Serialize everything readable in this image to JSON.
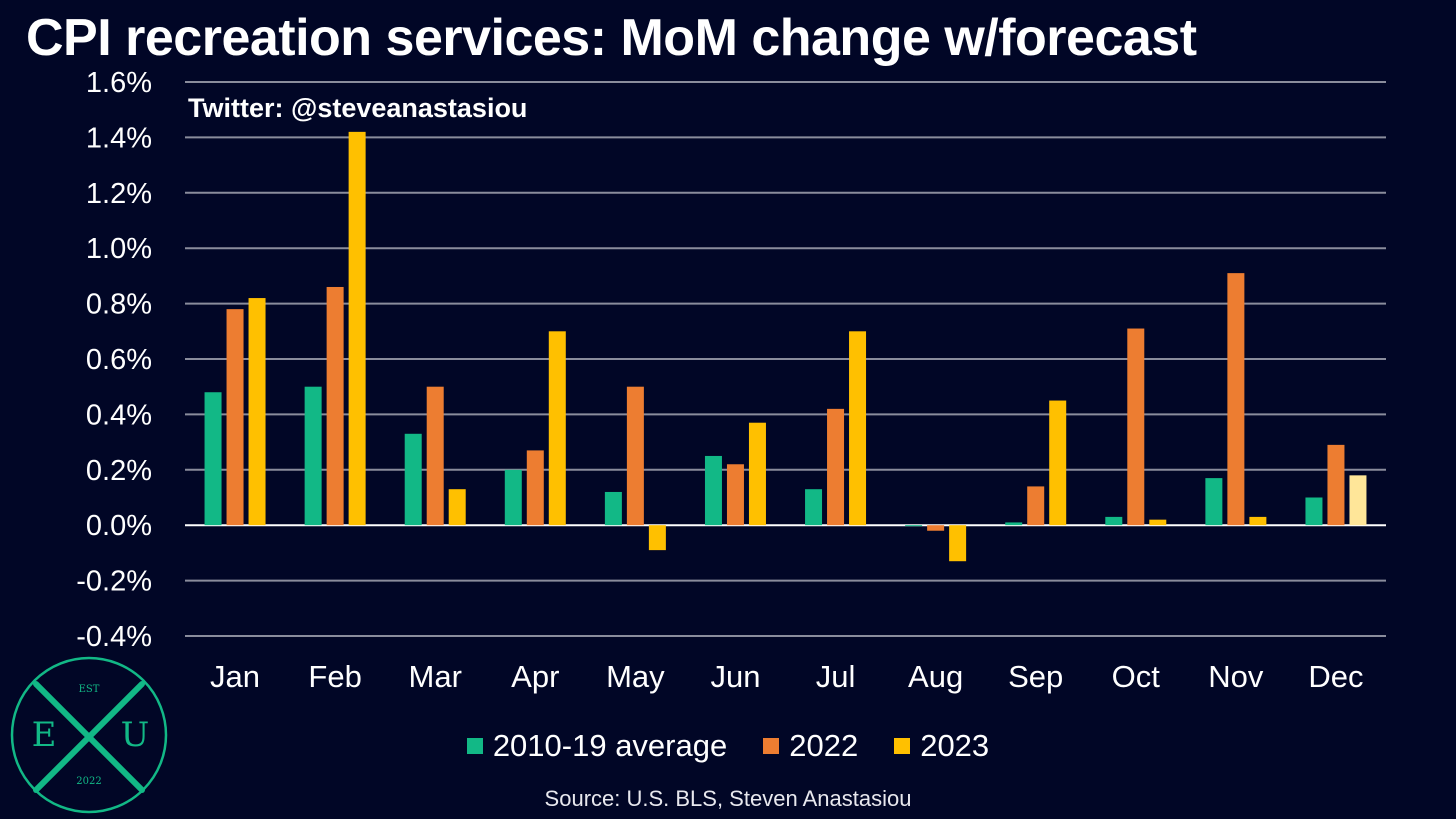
{
  "chart_data": {
    "type": "bar",
    "title": "CPI recreation services: MoM change w/forecast",
    "annotation": "Twitter: @steveanastasiou",
    "source": "Source: U.S. BLS, Steven Anastasiou",
    "categories": [
      "Jan",
      "Feb",
      "Mar",
      "Apr",
      "May",
      "Jun",
      "Jul",
      "Aug",
      "Sep",
      "Oct",
      "Nov",
      "Dec"
    ],
    "series": [
      {
        "name": "2010-19 average",
        "color": "#12b886",
        "values": [
          0.48,
          0.5,
          0.33,
          0.2,
          0.12,
          0.25,
          0.13,
          0.0,
          0.01,
          0.03,
          0.17,
          0.1
        ]
      },
      {
        "name": "2022",
        "color": "#ed7d31",
        "values": [
          0.78,
          0.86,
          0.5,
          0.27,
          0.5,
          0.22,
          0.42,
          -0.02,
          0.14,
          0.71,
          0.91,
          0.29
        ]
      },
      {
        "name": "2023",
        "color": "#ffc000",
        "forecast_color": "#ffe699",
        "values": [
          0.82,
          1.42,
          0.13,
          0.7,
          -0.09,
          0.37,
          0.7,
          -0.13,
          0.45,
          0.02,
          0.03,
          0.18
        ],
        "forecast": [
          false,
          false,
          false,
          false,
          false,
          false,
          false,
          false,
          false,
          false,
          false,
          true
        ]
      }
    ],
    "ylim": [
      -0.4,
      1.6
    ],
    "yticks": [
      -0.4,
      -0.2,
      0.0,
      0.2,
      0.4,
      0.6,
      0.8,
      1.0,
      1.2,
      1.4,
      1.6
    ],
    "ytick_labels": [
      "-0.4%",
      "-0.2%",
      "0.0%",
      "0.2%",
      "0.4%",
      "0.6%",
      "0.8%",
      "1.0%",
      "1.2%",
      "1.4%",
      "1.6%"
    ],
    "grid": true,
    "legend_position": "bottom"
  },
  "logo": {
    "top_text": "EST",
    "left_letter": "E",
    "right_letter": "U",
    "bottom_text": "2022",
    "color": "#12b886"
  }
}
